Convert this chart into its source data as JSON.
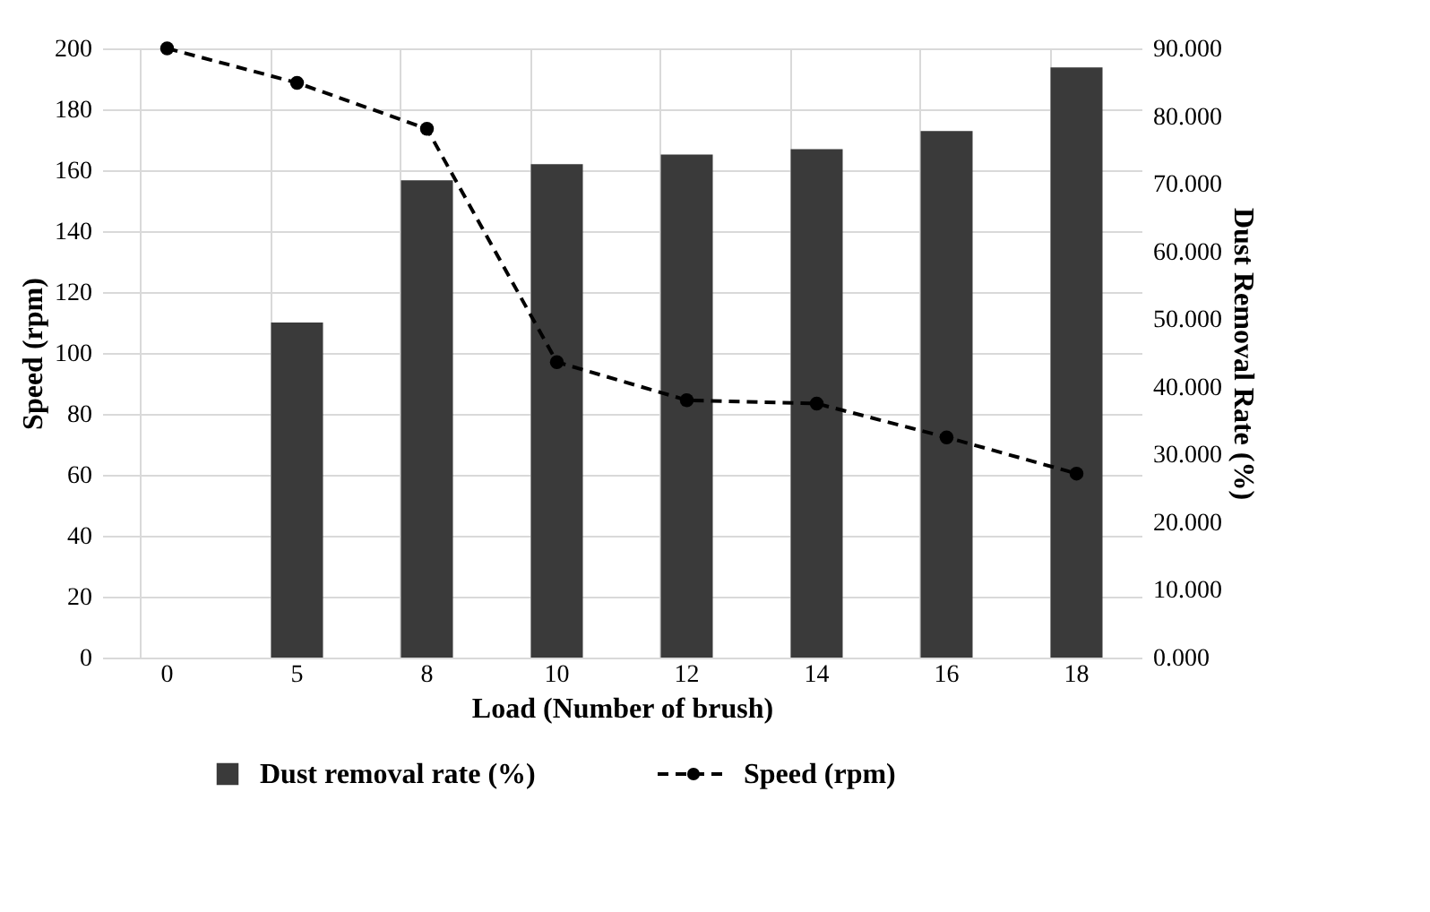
{
  "chart_data": {
    "type": "bar",
    "xlabel": "Load (Number of brush)",
    "ylabel": "Speed (rpm)",
    "y2label": "Dust Removal Rate (%)",
    "categories": [
      "0",
      "5",
      "8",
      "10",
      "12",
      "14",
      "16",
      "18"
    ],
    "series": [
      {
        "name": "Dust removal rate (%)",
        "axis": "y2",
        "color": "#3a3a3a",
        "values": [
          null,
          49.5,
          70.5,
          72.9,
          74.3,
          75.1,
          77.8,
          87.2
        ]
      },
      {
        "name": "Speed (rpm)",
        "type": "line",
        "color": "#000000",
        "marker": "circle",
        "line_style": "dashed",
        "values": [
          200,
          188.7,
          173.6,
          97,
          84.5,
          83.4,
          72.3,
          60.4
        ]
      }
    ],
    "ylim": [
      0,
      200
    ],
    "yticks": [
      0,
      20,
      40,
      60,
      80,
      100,
      120,
      140,
      160,
      180,
      200
    ],
    "y2lim": [
      0,
      90
    ],
    "y2ticks": [
      {
        "value": 0,
        "label": "0.000"
      },
      {
        "value": 10,
        "label": "10.000"
      },
      {
        "value": 20,
        "label": "20.000"
      },
      {
        "value": 30,
        "label": "30.000"
      },
      {
        "value": 40,
        "label": "40.000"
      },
      {
        "value": 50,
        "label": "50.000"
      },
      {
        "value": 60,
        "label": "60.000"
      },
      {
        "value": 70,
        "label": "70.000"
      },
      {
        "value": 80,
        "label": "80.000"
      },
      {
        "value": 90,
        "label": "90.000"
      }
    ],
    "grid": true,
    "legend": "bottom"
  }
}
